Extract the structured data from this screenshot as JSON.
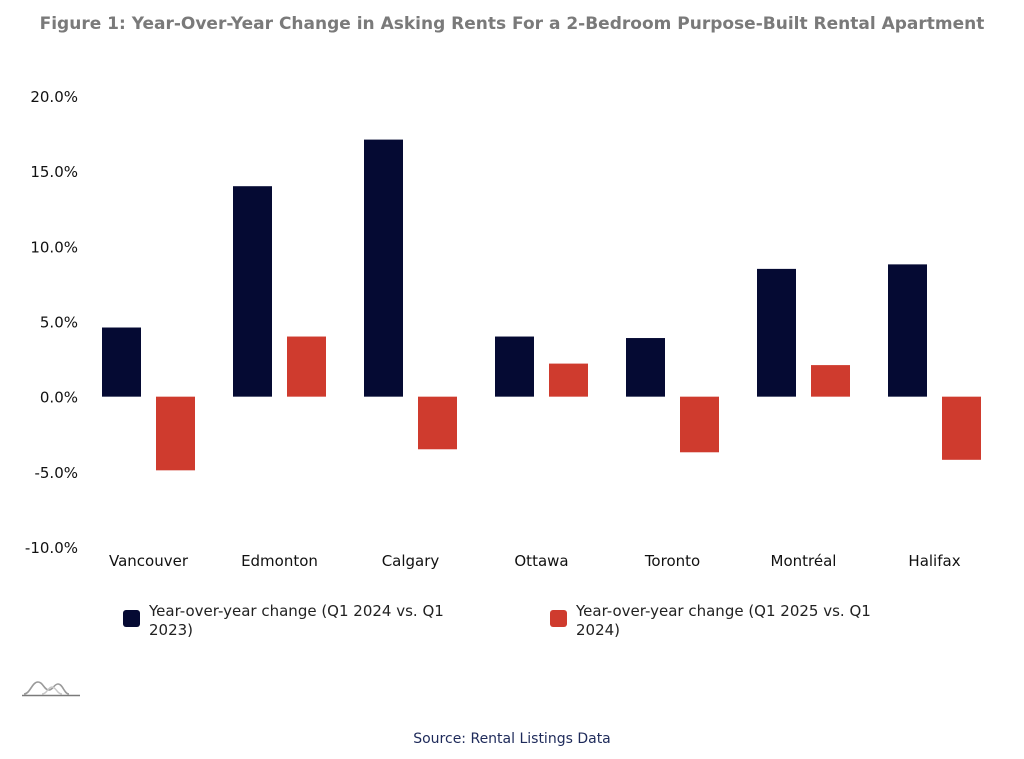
{
  "title": "Figure 1: Year-Over-Year Change in Asking Rents For a 2-Bedroom Purpose-Built Rental Apartment",
  "source": "Source: Rental Listings Data",
  "logo_icon": "mountain-logo-icon",
  "colors": {
    "series_1": "#050a33",
    "series_2": "#cf3b2e",
    "title": "#7a7a7a",
    "source": "#1e2a5a"
  },
  "chart_data": {
    "type": "bar",
    "title": "Figure 1: Year-Over-Year Change in Asking Rents For a 2-Bedroom Purpose-Built Rental Apartment",
    "xlabel": "",
    "ylabel": "",
    "categories": [
      "Vancouver",
      "Edmonton",
      "Calgary",
      "Ottawa",
      "Toronto",
      "Montréal",
      "Halifax"
    ],
    "series": [
      {
        "name": "Year-over-year change (Q1 2024 vs. Q1 2023)",
        "color": "#050a33",
        "values": [
          4.6,
          14.0,
          17.1,
          4.0,
          3.9,
          8.5,
          8.8
        ]
      },
      {
        "name": "Year-over-year change (Q1 2025 vs. Q1 2024)",
        "color": "#cf3b2e",
        "values": [
          -4.9,
          4.0,
          -3.5,
          2.2,
          -3.7,
          2.1,
          -4.2
        ]
      }
    ],
    "ylim": [
      -10,
      20
    ],
    "yticks": [
      20,
      15,
      10,
      5,
      0,
      -5,
      -10
    ],
    "ytick_labels": [
      "20.0%",
      "15.0%",
      "10.0%",
      "5.0%",
      "0.0%",
      "-5.0%",
      "-10.0%"
    ],
    "grid": false,
    "legend_position": "bottom"
  }
}
